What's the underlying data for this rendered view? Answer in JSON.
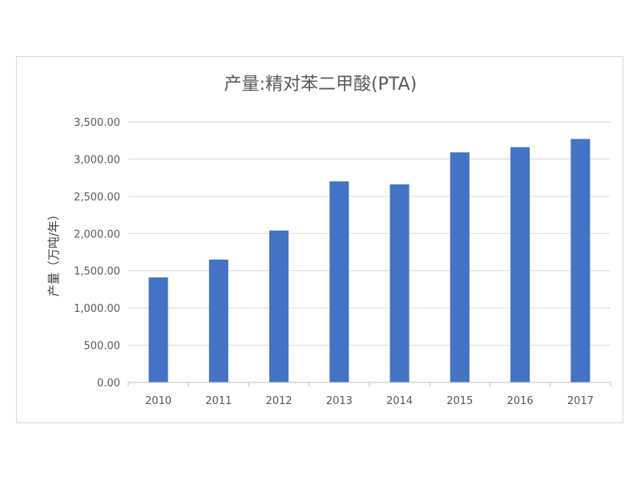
{
  "chart_data": {
    "type": "bar",
    "title": "产量:精对苯二甲酸(PTA)",
    "xlabel": "",
    "ylabel": "产量（万吨/年）",
    "categories": [
      "2010",
      "2011",
      "2012",
      "2013",
      "2014",
      "2015",
      "2016",
      "2017"
    ],
    "values": [
      1410,
      1650,
      2040,
      2700,
      2660,
      3090,
      3160,
      3270
    ],
    "ylim": [
      0,
      3500
    ],
    "yticks": [
      "0.00",
      "500.00",
      "1,000.00",
      "1,500.00",
      "2,000.00",
      "2,500.00",
      "3,000.00",
      "3,500.00"
    ],
    "grid": true,
    "legend": "none",
    "bar_color": "#4472C4"
  }
}
